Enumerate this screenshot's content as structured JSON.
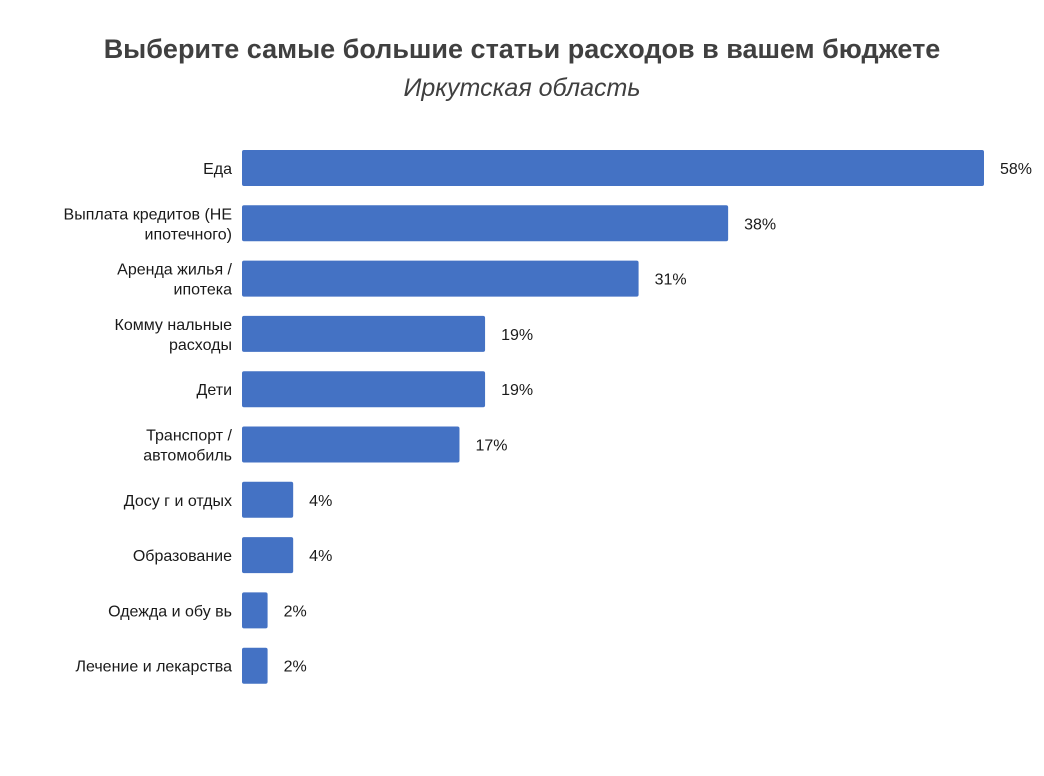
{
  "chart_data": {
    "type": "bar",
    "orientation": "horizontal",
    "title": "Выберите самые большие статьи расходов в вашем бюджете",
    "subtitle": "Иркутская область",
    "categories": [
      [
        "Еда"
      ],
      [
        "Выплата кредитов (НЕ",
        "ипотечного)"
      ],
      [
        "Аренда жилья /",
        "ипотека"
      ],
      [
        "Комму нальные",
        "расходы"
      ],
      [
        "Дети"
      ],
      [
        "Транспорт /",
        "автомобиль"
      ],
      [
        "Досу г и отдых"
      ],
      [
        "Образование"
      ],
      [
        "Одежда и обу вь"
      ],
      [
        "Лечение и лекарства"
      ]
    ],
    "values": [
      58,
      38,
      31,
      19,
      19,
      17,
      4,
      4,
      2,
      2
    ],
    "value_labels": [
      "58%",
      "38%",
      "31%",
      "19%",
      "19%",
      "17%",
      "4%",
      "4%",
      "2%",
      "2%"
    ],
    "unit": "%",
    "xlim": [
      0,
      58
    ],
    "grid": false,
    "legend": "none",
    "bar_color": "#4472c4"
  }
}
